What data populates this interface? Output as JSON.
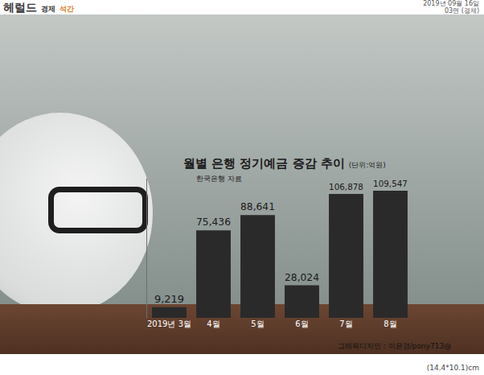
{
  "header": {
    "logo": "헤럴드",
    "section": "경제",
    "edition": "석간",
    "date": "2019년 09월 16일",
    "page": "03면 (경제)"
  },
  "footer": {
    "size": "(14.4*10.1)cm"
  },
  "chart_data": {
    "type": "bar",
    "title": "월별 은행 정기예금 증감 추이",
    "subtitle": "(단위:억원)",
    "source": "한국은행 자료",
    "credit": "그래픽디자인 : 이은경/pony713@",
    "categories": [
      "2019년 3월",
      "4월",
      "5월",
      "6월",
      "7월",
      "8월"
    ],
    "values": [
      9219,
      75436,
      88641,
      28024,
      106878,
      109547
    ],
    "value_labels": [
      "9,219",
      "75,436",
      "88,641",
      "28,024",
      "106,878",
      "109,547"
    ],
    "color": "#2a2a2a",
    "ylim": [
      0,
      120000
    ],
    "yticks": [],
    "grid": false,
    "data_labels": true,
    "tick_labels": "x"
  }
}
